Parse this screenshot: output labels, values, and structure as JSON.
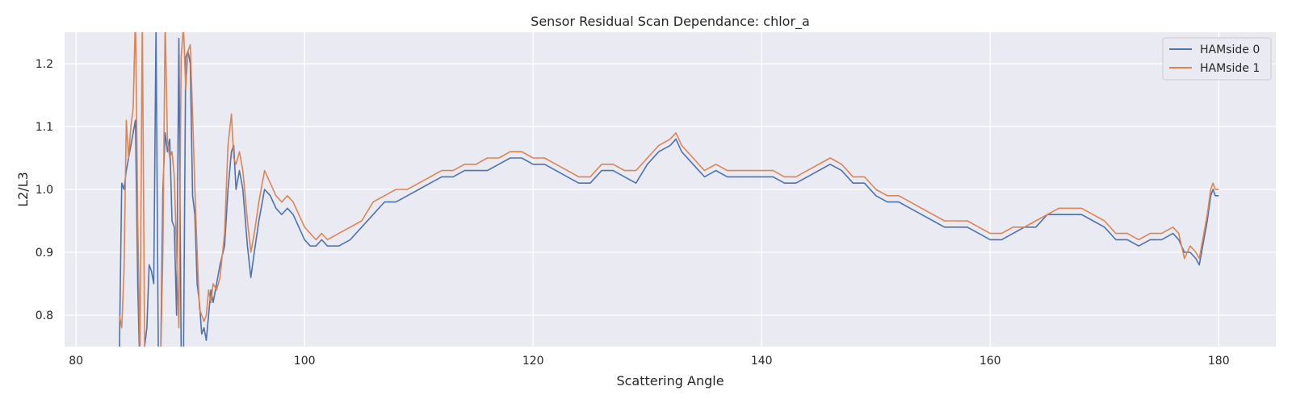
{
  "chart_data": {
    "type": "line",
    "title": "Sensor Residual Scan Dependance: chlor_a",
    "xlabel": "Scattering Angle",
    "ylabel": "L2/L3",
    "xlim": [
      79,
      185
    ],
    "ylim": [
      0.75,
      1.25
    ],
    "xticks": [
      80,
      100,
      120,
      140,
      160,
      180
    ],
    "yticks": [
      0.8,
      0.9,
      1.0,
      1.1,
      1.2
    ],
    "xtick_labels": [
      "80",
      "100",
      "120",
      "140",
      "160",
      "180"
    ],
    "ytick_labels": [
      "0.8",
      "0.9",
      "1.0",
      "1.1",
      "1.2"
    ],
    "grid": true,
    "legend_position": "top-right",
    "background": "#eaeaf2",
    "series": [
      {
        "name": "HAMside 0",
        "color": "#4c72b0",
        "points": [
          [
            83.8,
            0.75
          ],
          [
            84.0,
            1.01
          ],
          [
            84.2,
            1.0
          ],
          [
            84.4,
            1.03
          ],
          [
            84.6,
            1.05
          ],
          [
            84.8,
            1.07
          ],
          [
            85.0,
            1.09
          ],
          [
            85.2,
            1.11
          ],
          [
            85.4,
            0.85
          ],
          [
            85.6,
            0.7
          ],
          [
            85.8,
            0.74
          ],
          [
            86.0,
            0.75
          ],
          [
            86.2,
            0.78
          ],
          [
            86.4,
            0.88
          ],
          [
            86.6,
            0.87
          ],
          [
            86.8,
            0.85
          ],
          [
            87.0,
            1.26
          ],
          [
            87.2,
            0.74
          ],
          [
            87.4,
            0.72
          ],
          [
            87.6,
            1.0
          ],
          [
            87.8,
            1.09
          ],
          [
            88.0,
            1.06
          ],
          [
            88.2,
            1.08
          ],
          [
            88.4,
            0.95
          ],
          [
            88.6,
            0.94
          ],
          [
            88.8,
            0.8
          ],
          [
            89.0,
            1.24
          ],
          [
            89.2,
            0.74
          ],
          [
            89.4,
            0.72
          ],
          [
            89.6,
            1.21
          ],
          [
            89.8,
            1.22
          ],
          [
            90.0,
            1.2
          ],
          [
            90.2,
            0.99
          ],
          [
            90.4,
            0.96
          ],
          [
            90.6,
            0.85
          ],
          [
            90.8,
            0.82
          ],
          [
            91.0,
            0.77
          ],
          [
            91.2,
            0.78
          ],
          [
            91.4,
            0.76
          ],
          [
            91.6,
            0.8
          ],
          [
            91.8,
            0.84
          ],
          [
            92.0,
            0.82
          ],
          [
            92.3,
            0.85
          ],
          [
            92.6,
            0.88
          ],
          [
            93.0,
            0.91
          ],
          [
            93.3,
            1.0
          ],
          [
            93.6,
            1.06
          ],
          [
            93.8,
            1.07
          ],
          [
            94.0,
            1.0
          ],
          [
            94.3,
            1.03
          ],
          [
            94.6,
            1.0
          ],
          [
            95.0,
            0.91
          ],
          [
            95.3,
            0.86
          ],
          [
            95.6,
            0.9
          ],
          [
            96.0,
            0.95
          ],
          [
            96.5,
            1.0
          ],
          [
            97.0,
            0.99
          ],
          [
            97.5,
            0.97
          ],
          [
            98.0,
            0.96
          ],
          [
            98.5,
            0.97
          ],
          [
            99.0,
            0.96
          ],
          [
            99.5,
            0.94
          ],
          [
            100.0,
            0.92
          ],
          [
            100.5,
            0.91
          ],
          [
            101.0,
            0.91
          ],
          [
            101.5,
            0.92
          ],
          [
            102.0,
            0.91
          ],
          [
            103.0,
            0.91
          ],
          [
            104.0,
            0.92
          ],
          [
            105.0,
            0.94
          ],
          [
            106.0,
            0.96
          ],
          [
            107.0,
            0.98
          ],
          [
            108.0,
            0.98
          ],
          [
            109.0,
            0.99
          ],
          [
            110.0,
            1.0
          ],
          [
            111.0,
            1.01
          ],
          [
            112.0,
            1.02
          ],
          [
            113.0,
            1.02
          ],
          [
            114.0,
            1.03
          ],
          [
            115.0,
            1.03
          ],
          [
            116.0,
            1.03
          ],
          [
            117.0,
            1.04
          ],
          [
            118.0,
            1.05
          ],
          [
            119.0,
            1.05
          ],
          [
            120.0,
            1.04
          ],
          [
            121.0,
            1.04
          ],
          [
            122.0,
            1.03
          ],
          [
            123.0,
            1.02
          ],
          [
            124.0,
            1.01
          ],
          [
            125.0,
            1.01
          ],
          [
            126.0,
            1.03
          ],
          [
            127.0,
            1.03
          ],
          [
            128.0,
            1.02
          ],
          [
            129.0,
            1.01
          ],
          [
            130.0,
            1.04
          ],
          [
            131.0,
            1.06
          ],
          [
            132.0,
            1.07
          ],
          [
            132.5,
            1.08
          ],
          [
            133.0,
            1.06
          ],
          [
            134.0,
            1.04
          ],
          [
            135.0,
            1.02
          ],
          [
            136.0,
            1.03
          ],
          [
            137.0,
            1.02
          ],
          [
            138.0,
            1.02
          ],
          [
            139.0,
            1.02
          ],
          [
            140.0,
            1.02
          ],
          [
            141.0,
            1.02
          ],
          [
            142.0,
            1.01
          ],
          [
            143.0,
            1.01
          ],
          [
            144.0,
            1.02
          ],
          [
            145.0,
            1.03
          ],
          [
            146.0,
            1.04
          ],
          [
            147.0,
            1.03
          ],
          [
            148.0,
            1.01
          ],
          [
            149.0,
            1.01
          ],
          [
            150.0,
            0.99
          ],
          [
            151.0,
            0.98
          ],
          [
            152.0,
            0.98
          ],
          [
            153.0,
            0.97
          ],
          [
            154.0,
            0.96
          ],
          [
            155.0,
            0.95
          ],
          [
            156.0,
            0.94
          ],
          [
            157.0,
            0.94
          ],
          [
            158.0,
            0.94
          ],
          [
            159.0,
            0.93
          ],
          [
            160.0,
            0.92
          ],
          [
            161.0,
            0.92
          ],
          [
            162.0,
            0.93
          ],
          [
            163.0,
            0.94
          ],
          [
            164.0,
            0.94
          ],
          [
            165.0,
            0.96
          ],
          [
            166.0,
            0.96
          ],
          [
            167.0,
            0.96
          ],
          [
            168.0,
            0.96
          ],
          [
            169.0,
            0.95
          ],
          [
            170.0,
            0.94
          ],
          [
            171.0,
            0.92
          ],
          [
            172.0,
            0.92
          ],
          [
            173.0,
            0.91
          ],
          [
            174.0,
            0.92
          ],
          [
            175.0,
            0.92
          ],
          [
            176.0,
            0.93
          ],
          [
            176.5,
            0.92
          ],
          [
            177.0,
            0.9
          ],
          [
            177.5,
            0.9
          ],
          [
            178.0,
            0.89
          ],
          [
            178.3,
            0.88
          ],
          [
            178.6,
            0.91
          ],
          [
            179.0,
            0.95
          ],
          [
            179.3,
            0.99
          ],
          [
            179.5,
            1.0
          ],
          [
            179.7,
            0.99
          ],
          [
            180.0,
            0.99
          ]
        ]
      },
      {
        "name": "HAMside 1",
        "color": "#dd8452",
        "points": [
          [
            83.8,
            0.8
          ],
          [
            84.0,
            0.78
          ],
          [
            84.2,
            0.87
          ],
          [
            84.4,
            1.11
          ],
          [
            84.6,
            1.05
          ],
          [
            84.8,
            1.1
          ],
          [
            85.0,
            1.13
          ],
          [
            85.2,
            1.28
          ],
          [
            85.4,
            0.95
          ],
          [
            85.6,
            0.74
          ],
          [
            85.8,
            1.28
          ],
          [
            86.0,
            0.75
          ],
          [
            86.2,
            0.72
          ],
          [
            86.4,
            0.72
          ],
          [
            86.6,
            0.7
          ],
          [
            86.8,
            0.72
          ],
          [
            87.0,
            0.74
          ],
          [
            87.2,
            0.72
          ],
          [
            87.4,
            0.72
          ],
          [
            87.6,
            0.9
          ],
          [
            87.8,
            1.27
          ],
          [
            88.0,
            1.08
          ],
          [
            88.2,
            1.05
          ],
          [
            88.4,
            1.06
          ],
          [
            88.6,
            1.02
          ],
          [
            88.8,
            0.9
          ],
          [
            89.0,
            0.78
          ],
          [
            89.2,
            1.21
          ],
          [
            89.4,
            1.26
          ],
          [
            89.6,
            1.16
          ],
          [
            89.8,
            1.22
          ],
          [
            90.0,
            1.23
          ],
          [
            90.2,
            1.12
          ],
          [
            90.4,
            1.0
          ],
          [
            90.6,
            0.9
          ],
          [
            90.8,
            0.81
          ],
          [
            91.0,
            0.8
          ],
          [
            91.2,
            0.79
          ],
          [
            91.4,
            0.8
          ],
          [
            91.6,
            0.84
          ],
          [
            91.8,
            0.82
          ],
          [
            92.0,
            0.85
          ],
          [
            92.3,
            0.84
          ],
          [
            92.6,
            0.86
          ],
          [
            93.0,
            0.93
          ],
          [
            93.3,
            1.07
          ],
          [
            93.6,
            1.12
          ],
          [
            93.8,
            1.05
          ],
          [
            94.0,
            1.04
          ],
          [
            94.3,
            1.06
          ],
          [
            94.6,
            1.03
          ],
          [
            95.0,
            0.95
          ],
          [
            95.3,
            0.9
          ],
          [
            95.6,
            0.93
          ],
          [
            96.0,
            0.98
          ],
          [
            96.5,
            1.03
          ],
          [
            97.0,
            1.01
          ],
          [
            97.5,
            0.99
          ],
          [
            98.0,
            0.98
          ],
          [
            98.5,
            0.99
          ],
          [
            99.0,
            0.98
          ],
          [
            99.5,
            0.96
          ],
          [
            100.0,
            0.94
          ],
          [
            100.5,
            0.93
          ],
          [
            101.0,
            0.92
          ],
          [
            101.5,
            0.93
          ],
          [
            102.0,
            0.92
          ],
          [
            103.0,
            0.93
          ],
          [
            104.0,
            0.94
          ],
          [
            105.0,
            0.95
          ],
          [
            106.0,
            0.98
          ],
          [
            107.0,
            0.99
          ],
          [
            108.0,
            1.0
          ],
          [
            109.0,
            1.0
          ],
          [
            110.0,
            1.01
          ],
          [
            111.0,
            1.02
          ],
          [
            112.0,
            1.03
          ],
          [
            113.0,
            1.03
          ],
          [
            114.0,
            1.04
          ],
          [
            115.0,
            1.04
          ],
          [
            116.0,
            1.05
          ],
          [
            117.0,
            1.05
          ],
          [
            118.0,
            1.06
          ],
          [
            119.0,
            1.06
          ],
          [
            120.0,
            1.05
          ],
          [
            121.0,
            1.05
          ],
          [
            122.0,
            1.04
          ],
          [
            123.0,
            1.03
          ],
          [
            124.0,
            1.02
          ],
          [
            125.0,
            1.02
          ],
          [
            126.0,
            1.04
          ],
          [
            127.0,
            1.04
          ],
          [
            128.0,
            1.03
          ],
          [
            129.0,
            1.03
          ],
          [
            130.0,
            1.05
          ],
          [
            131.0,
            1.07
          ],
          [
            132.0,
            1.08
          ],
          [
            132.5,
            1.09
          ],
          [
            133.0,
            1.07
          ],
          [
            134.0,
            1.05
          ],
          [
            135.0,
            1.03
          ],
          [
            136.0,
            1.04
          ],
          [
            137.0,
            1.03
          ],
          [
            138.0,
            1.03
          ],
          [
            139.0,
            1.03
          ],
          [
            140.0,
            1.03
          ],
          [
            141.0,
            1.03
          ],
          [
            142.0,
            1.02
          ],
          [
            143.0,
            1.02
          ],
          [
            144.0,
            1.03
          ],
          [
            145.0,
            1.04
          ],
          [
            146.0,
            1.05
          ],
          [
            147.0,
            1.04
          ],
          [
            148.0,
            1.02
          ],
          [
            149.0,
            1.02
          ],
          [
            150.0,
            1.0
          ],
          [
            151.0,
            0.99
          ],
          [
            152.0,
            0.99
          ],
          [
            153.0,
            0.98
          ],
          [
            154.0,
            0.97
          ],
          [
            155.0,
            0.96
          ],
          [
            156.0,
            0.95
          ],
          [
            157.0,
            0.95
          ],
          [
            158.0,
            0.95
          ],
          [
            159.0,
            0.94
          ],
          [
            160.0,
            0.93
          ],
          [
            161.0,
            0.93
          ],
          [
            162.0,
            0.94
          ],
          [
            163.0,
            0.94
          ],
          [
            164.0,
            0.95
          ],
          [
            165.0,
            0.96
          ],
          [
            166.0,
            0.97
          ],
          [
            167.0,
            0.97
          ],
          [
            168.0,
            0.97
          ],
          [
            169.0,
            0.96
          ],
          [
            170.0,
            0.95
          ],
          [
            171.0,
            0.93
          ],
          [
            172.0,
            0.93
          ],
          [
            173.0,
            0.92
          ],
          [
            174.0,
            0.93
          ],
          [
            175.0,
            0.93
          ],
          [
            176.0,
            0.94
          ],
          [
            176.5,
            0.93
          ],
          [
            177.0,
            0.89
          ],
          [
            177.5,
            0.91
          ],
          [
            178.0,
            0.9
          ],
          [
            178.3,
            0.89
          ],
          [
            178.6,
            0.92
          ],
          [
            179.0,
            0.96
          ],
          [
            179.3,
            1.0
          ],
          [
            179.5,
            1.01
          ],
          [
            179.7,
            1.0
          ],
          [
            180.0,
            1.0
          ]
        ]
      }
    ]
  }
}
